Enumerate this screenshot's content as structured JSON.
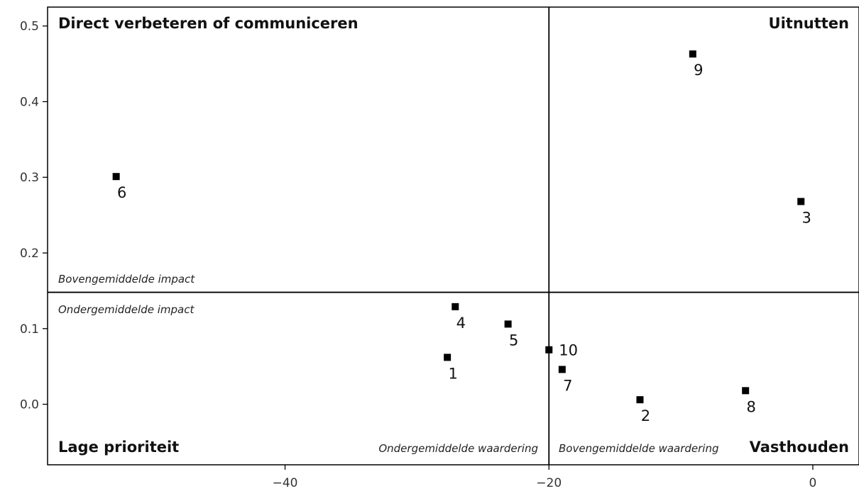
{
  "chart_data": {
    "type": "scatter",
    "title": "",
    "xlabel": "",
    "ylabel": "",
    "xlim": [
      -58,
      3.5
    ],
    "ylim": [
      -0.08,
      0.525
    ],
    "x_ticks": [
      -40,
      -20,
      0
    ],
    "x_tick_labels": [
      "−40",
      "−20",
      "0"
    ],
    "y_ticks": [
      0.0,
      0.1,
      0.2,
      0.3,
      0.4,
      0.5
    ],
    "y_tick_labels": [
      "0.0",
      "0.1",
      "0.2",
      "0.3",
      "0.4",
      "0.5"
    ],
    "grid": false,
    "divider_x": -20,
    "divider_y": 0.148,
    "points": [
      {
        "label": "1",
        "x": -27.7,
        "y": 0.062
      },
      {
        "label": "2",
        "x": -13.1,
        "y": 0.006
      },
      {
        "label": "3",
        "x": -0.9,
        "y": 0.268
      },
      {
        "label": "4",
        "x": -27.1,
        "y": 0.129
      },
      {
        "label": "5",
        "x": -23.1,
        "y": 0.106
      },
      {
        "label": "6",
        "x": -52.8,
        "y": 0.301
      },
      {
        "label": "7",
        "x": -19.0,
        "y": 0.046
      },
      {
        "label": "8",
        "x": -5.1,
        "y": 0.018
      },
      {
        "label": "9",
        "x": -9.1,
        "y": 0.463
      },
      {
        "label": "10",
        "x": -20.0,
        "y": 0.072
      }
    ],
    "quadrants": {
      "top_left": "Direct verbeteren of communiceren",
      "top_right": "Uitnutten",
      "bottom_left": "Lage prioriteit",
      "bottom_right": "Vasthouden"
    },
    "annotations": {
      "above_average_impact": "Bovengemiddelde impact",
      "below_average_impact": "Ondergemiddelde impact",
      "below_average_rating": "Ondergemiddelde waardering",
      "above_average_rating": "Bovengemiddelde waardering"
    },
    "colors": {
      "marker": "#000000",
      "axis": "#000000"
    }
  }
}
